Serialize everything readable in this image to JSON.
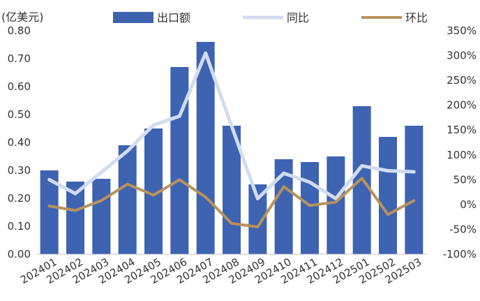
{
  "chart_data": {
    "type": "bar",
    "unit_label": "(亿美元)",
    "categories": [
      "202401",
      "202402",
      "202403",
      "202404",
      "202405",
      "202406",
      "202407",
      "202408",
      "202409",
      "202410",
      "202411",
      "202412",
      "202501",
      "202502",
      "202503"
    ],
    "series": [
      {
        "name": "出口额",
        "type": "bar",
        "axis": "left",
        "color": "#3d63b1",
        "values": [
          0.3,
          0.26,
          0.27,
          0.39,
          0.45,
          0.67,
          0.76,
          0.46,
          0.25,
          0.34,
          0.33,
          0.35,
          0.53,
          0.42,
          0.46
        ]
      },
      {
        "name": "同比",
        "type": "line",
        "axis": "right",
        "color": "#d2dcef",
        "values": [
          50,
          22,
          65,
          108,
          160,
          178,
          305,
          158,
          12,
          63,
          45,
          12,
          78,
          68,
          66
        ]
      },
      {
        "name": "环比",
        "type": "line",
        "axis": "right",
        "color": "#b8925c",
        "values": [
          -3,
          -12,
          8,
          41,
          19,
          50,
          15,
          -38,
          -45,
          36,
          -2,
          5,
          53,
          -20,
          8
        ]
      }
    ],
    "y_left": {
      "min": 0,
      "max": 0.8,
      "ticks": [
        "0.00",
        "0.10",
        "0.20",
        "0.30",
        "0.40",
        "0.50",
        "0.60",
        "0.70",
        "0.80"
      ]
    },
    "y_right": {
      "min": -100,
      "max": 350,
      "ticks": [
        "-100%",
        "-50%",
        "0%",
        "50%",
        "100%",
        "150%",
        "200%",
        "250%",
        "300%",
        "350%"
      ]
    },
    "legend_position": "top",
    "grid": false
  }
}
